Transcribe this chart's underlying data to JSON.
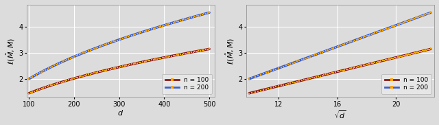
{
  "n_values": [
    100,
    200
  ],
  "d_min": 100,
  "d_max": 500,
  "d_step": 1,
  "color_n100": "#8B1A1A",
  "color_n200": "#3A5FCD",
  "marker_color": "#FFA500",
  "ylabel": "$\\ell(\\hat{M},M)$",
  "xlabel_left": "$d$",
  "xlabel_right": "$\\sqrt{d}$",
  "xticks_left": [
    100,
    200,
    300,
    400,
    500
  ],
  "xticks_right": [
    12,
    16,
    20
  ],
  "yticks": [
    2,
    3,
    4
  ],
  "ylim": [
    1.3,
    4.85
  ],
  "xlim_left": [
    95,
    512
  ],
  "xlim_right": [
    9.8,
    22.6
  ],
  "legend_labels": [
    "n = 100",
    "n = 200"
  ],
  "bg_color": "#DCDCDC",
  "grid_color": "#FFFFFF",
  "a100": 0.1376,
  "b100": 0.073,
  "a200": 0.2063,
  "b200": -0.063
}
